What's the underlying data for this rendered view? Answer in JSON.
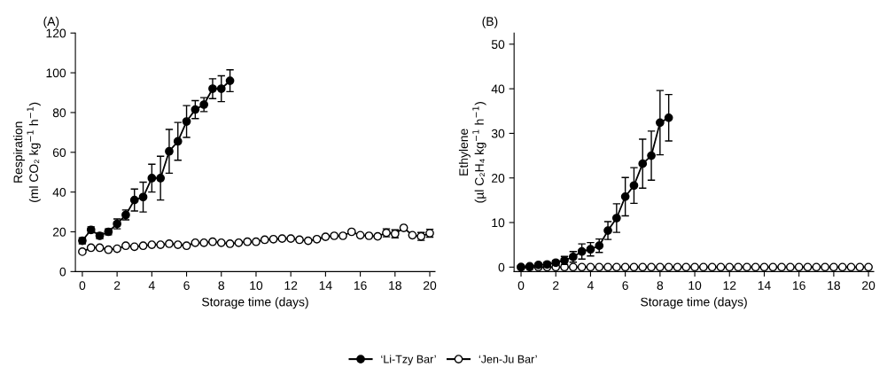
{
  "chart_data": [
    {
      "type": "line",
      "title": "(A)",
      "xlabel": "Storage time (days)",
      "ylabel": "Respiration\n(ml CO₂ kg$^{−1}$ h$^{−1}$)",
      "xlim": [
        -0.4,
        20.3
      ],
      "xticks": [
        0,
        2,
        4,
        6,
        8,
        10,
        12,
        14,
        16,
        18,
        20
      ],
      "ylim": [
        0,
        120
      ],
      "yticks": [
        0,
        20,
        40,
        60,
        80,
        100,
        120
      ],
      "grid": false,
      "legend": "bottom",
      "marker": "circle",
      "line_style": "solid",
      "series": [
        {
          "name": "‘Li-Tzy Bar’",
          "color": "#000000",
          "x": [
            0,
            0.5,
            1,
            1.5,
            2,
            2.5,
            3,
            3.5,
            4,
            4.5,
            5,
            5.5,
            6,
            6.5,
            7,
            7.5,
            8,
            8.5
          ],
          "values": [
            15.5,
            21,
            18,
            20,
            24,
            28.5,
            36,
            37.5,
            47,
            47,
            60.5,
            65.5,
            75.5,
            81.5,
            84,
            92,
            92,
            96
          ],
          "errors": [
            1.5,
            1.5,
            1.5,
            1.5,
            2.5,
            2.5,
            5.5,
            7.5,
            7,
            11,
            11,
            9.5,
            8,
            4.5,
            3.5,
            5,
            6.5,
            5.5
          ]
        },
        {
          "name": "‘Jen-Ju Bar’",
          "color": "#ffffff",
          "x": [
            0,
            0.5,
            1,
            1.5,
            2,
            2.5,
            3,
            3.5,
            4,
            4.5,
            5,
            5.5,
            6,
            6.5,
            7,
            7.5,
            8,
            8.5,
            9,
            9.5,
            10,
            10.5,
            11,
            11.5,
            12,
            12.5,
            13,
            13.5,
            14,
            14.5,
            15,
            15.5,
            16,
            16.5,
            17,
            17.5,
            18,
            18.5,
            19,
            19.5,
            20
          ],
          "values": [
            10,
            12,
            12,
            11,
            11.5,
            13,
            12.5,
            13,
            13.5,
            13.5,
            14,
            13.5,
            13,
            14.5,
            14.5,
            15,
            14.5,
            14,
            14.5,
            15,
            15,
            16,
            16.3,
            16.6,
            16.6,
            16,
            15.5,
            16.3,
            17.5,
            18,
            18,
            20,
            18.3,
            18,
            17.7,
            19.5,
            19,
            22,
            18.3,
            17.7,
            19.3
          ],
          "errors": [
            null,
            null,
            null,
            null,
            null,
            null,
            null,
            null,
            null,
            null,
            null,
            null,
            null,
            null,
            null,
            null,
            null,
            null,
            null,
            null,
            null,
            null,
            null,
            null,
            null,
            null,
            null,
            null,
            null,
            null,
            null,
            null,
            null,
            null,
            null,
            2,
            2,
            null,
            null,
            2,
            2
          ]
        }
      ]
    },
    {
      "type": "line",
      "title": "(B)",
      "xlabel": "Storage time (days)",
      "ylabel": "Ethylene\n(µl C₂H₄ kg$^{−1}$ h$^{−1}$)",
      "xlim": [
        -0.4,
        20.3
      ],
      "xticks": [
        0,
        2,
        4,
        6,
        8,
        10,
        12,
        14,
        16,
        18,
        20
      ],
      "ylim": [
        -1,
        52.5
      ],
      "yticks": [
        0,
        10,
        20,
        30,
        40,
        50
      ],
      "grid": false,
      "marker": "circle",
      "line_style": "solid",
      "series": [
        {
          "color": "#000000",
          "x": [
            0,
            0.5,
            1,
            1.5,
            2,
            2.5,
            3,
            3.5,
            4,
            4.5,
            5,
            5.5,
            6,
            6.5,
            7,
            7.5,
            8,
            8.5
          ],
          "values": [
            0,
            0.2,
            0.5,
            0.6,
            1.0,
            1.5,
            2.3,
            3.5,
            4,
            4.8,
            8.2,
            11,
            15.8,
            18.3,
            23.2,
            25,
            32.4,
            33.5
          ],
          "errors": [
            0.2,
            0.3,
            0.3,
            0.5,
            0.5,
            0.9,
            1.2,
            1.7,
            1.5,
            1.5,
            2,
            3.2,
            4.3,
            4,
            5.5,
            5.5,
            7.2,
            5.2
          ]
        },
        {
          "color": "#ffffff",
          "x": [
            0,
            0.5,
            1,
            1.5,
            2,
            2.5,
            3,
            3.5,
            4,
            4.5,
            5,
            5.5,
            6,
            6.5,
            7,
            7.5,
            8,
            8.5,
            9,
            9.5,
            10,
            10.5,
            11,
            11.5,
            12,
            12.5,
            13,
            13.5,
            14,
            14.5,
            15,
            15.5,
            16,
            16.5,
            17,
            17.5,
            18,
            18.5,
            19,
            19.5,
            20
          ],
          "values": [
            0,
            0,
            0,
            0,
            0,
            0,
            0,
            0,
            0,
            0,
            0,
            0,
            0,
            0,
            0,
            0,
            0,
            0,
            0,
            0,
            0,
            0,
            0,
            0,
            0,
            0,
            0,
            0,
            0,
            0,
            0,
            0,
            0,
            0,
            0,
            0,
            0,
            0,
            0,
            0,
            0
          ]
        }
      ]
    }
  ]
}
